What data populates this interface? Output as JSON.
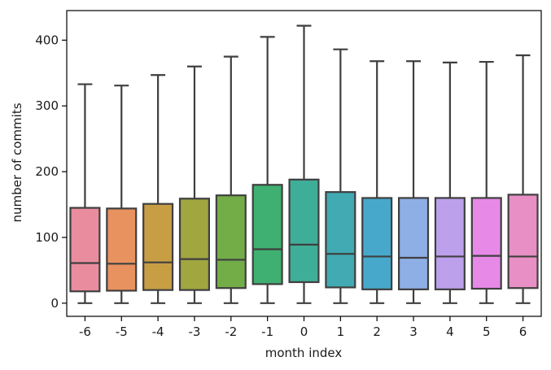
{
  "chart_data": {
    "type": "box",
    "title": "",
    "xlabel": "month index",
    "ylabel": "number of commits",
    "categories": [
      "-6",
      "-5",
      "-4",
      "-3",
      "-2",
      "-1",
      "0",
      "1",
      "2",
      "3",
      "4",
      "5",
      "6"
    ],
    "ylim": [
      -20,
      445
    ],
    "yticks": [
      0,
      100,
      200,
      300,
      400
    ],
    "grid": false,
    "legend": "none",
    "boxes": [
      {
        "category": "-6",
        "whisker_low": 0,
        "q1": 18,
        "median": 61,
        "q3": 145,
        "whisker_high": 333,
        "color": "#e98d9e"
      },
      {
        "category": "-5",
        "whisker_low": 0,
        "q1": 19,
        "median": 60,
        "q3": 144,
        "whisker_high": 331,
        "color": "#e8925f"
      },
      {
        "category": "-4",
        "whisker_low": 0,
        "q1": 20,
        "median": 62,
        "q3": 151,
        "whisker_high": 347,
        "color": "#c89e45"
      },
      {
        "category": "-3",
        "whisker_low": 0,
        "q1": 20,
        "median": 67,
        "q3": 159,
        "whisker_high": 360,
        "color": "#a1a63f"
      },
      {
        "category": "-2",
        "whisker_low": 0,
        "q1": 23,
        "median": 66,
        "q3": 164,
        "whisker_high": 375,
        "color": "#73ad48"
      },
      {
        "category": "-1",
        "whisker_low": 0,
        "q1": 29,
        "median": 82,
        "q3": 180,
        "whisker_high": 405,
        "color": "#3fb071"
      },
      {
        "category": "0",
        "whisker_low": 0,
        "q1": 32,
        "median": 89,
        "q3": 188,
        "whisker_high": 422,
        "color": "#3fae99"
      },
      {
        "category": "1",
        "whisker_low": 0,
        "q1": 24,
        "median": 75,
        "q3": 169,
        "whisker_high": 386,
        "color": "#41aab2"
      },
      {
        "category": "2",
        "whisker_low": 0,
        "q1": 21,
        "median": 71,
        "q3": 160,
        "whisker_high": 368,
        "color": "#47a8cc"
      },
      {
        "category": "3",
        "whisker_low": 0,
        "q1": 21,
        "median": 69,
        "q3": 160,
        "whisker_high": 368,
        "color": "#8eaee6"
      },
      {
        "category": "4",
        "whisker_low": 0,
        "q1": 21,
        "median": 71,
        "q3": 160,
        "whisker_high": 366,
        "color": "#bda0ec"
      },
      {
        "category": "5",
        "whisker_low": 0,
        "q1": 22,
        "median": 72,
        "q3": 160,
        "whisker_high": 367,
        "color": "#e789e6"
      },
      {
        "category": "6",
        "whisker_low": 0,
        "q1": 23,
        "median": 71,
        "q3": 165,
        "whisker_high": 377,
        "color": "#e890c5"
      }
    ],
    "style": {
      "line_color": "#3f3f3f",
      "axis_color": "#000000"
    }
  }
}
